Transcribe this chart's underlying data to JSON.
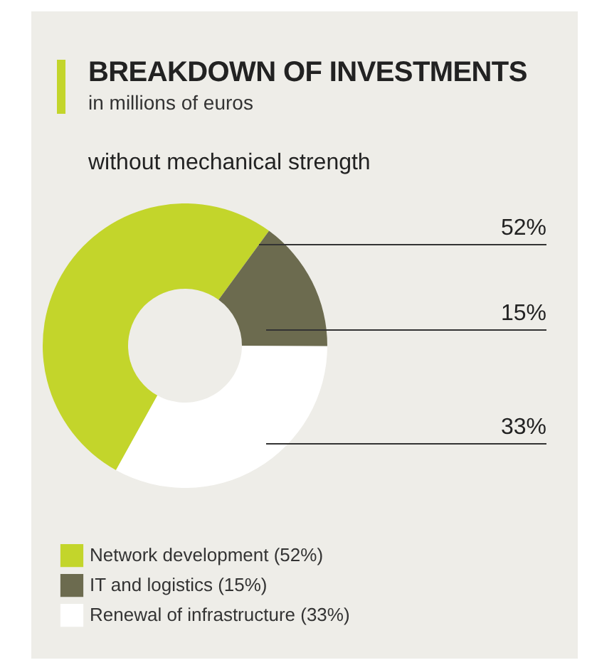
{
  "chart_data": {
    "type": "donut",
    "title": "BREAKDOWN OF INVESTMENTS",
    "subtitle": "in millions of euros",
    "annotations": [
      "without mechanical strength"
    ],
    "categories": [
      "Network development (52%)",
      "IT and logistics (15%)",
      "Renewal of infrastructure (33%)"
    ],
    "values": [
      52,
      15,
      33
    ],
    "colors": [
      "#c3d52b",
      "#6c6b4f",
      "#ffffff"
    ],
    "value_labels": [
      "52%",
      "15%",
      "33%"
    ],
    "legend": "bottom"
  }
}
